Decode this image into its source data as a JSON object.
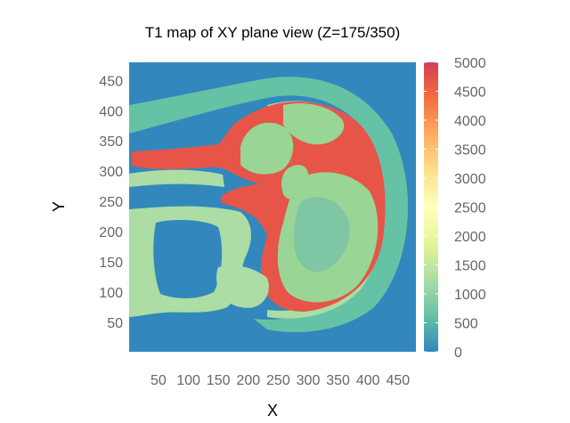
{
  "chart_data": {
    "type": "heatmap",
    "title": "T1 map of XY plane view (Z=175/350)",
    "xlabel": "X",
    "ylabel": "Y",
    "xlim": [
      1,
      480
    ],
    "ylim": [
      1,
      480
    ],
    "x_ticks": [
      50,
      100,
      150,
      200,
      250,
      300,
      350,
      400,
      450
    ],
    "y_ticks": [
      50,
      100,
      150,
      200,
      250,
      300,
      350,
      400,
      450
    ],
    "colorbar": {
      "min": 0,
      "max": 5000,
      "ticks": [
        0,
        500,
        1000,
        1500,
        2000,
        2500,
        3000,
        3500,
        4000,
        4500,
        5000
      ],
      "colors": [
        "#3288bd",
        "#66c2a5",
        "#abdda4",
        "#e6f598",
        "#ffffbf",
        "#fee08b",
        "#fdae61",
        "#f46d43",
        "#d53e4f"
      ]
    },
    "tissue_values": {
      "background": 0,
      "scalp_soft_tissue": 250,
      "bone_and_fat": 700,
      "white_matter": 800,
      "gray_matter": 1100,
      "csf": 4400
    }
  }
}
